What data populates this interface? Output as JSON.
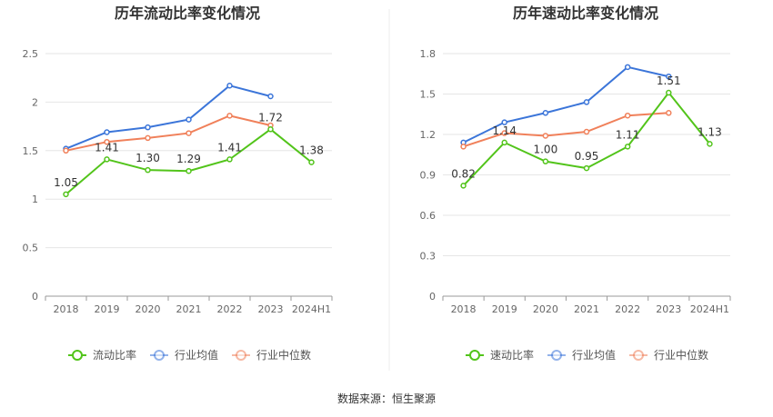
{
  "colors": {
    "primary": "#52c41a",
    "industry_avg": "#3b75d9",
    "industry_median": "#f0805a",
    "grid": "#e6e6e6",
    "axis": "#999999"
  },
  "chart_data": [
    {
      "type": "line",
      "title": "历年流动比率变化情况",
      "categories": [
        "2018",
        "2019",
        "2020",
        "2021",
        "2022",
        "2023",
        "2024H1"
      ],
      "ylim": [
        0,
        2.5
      ],
      "yticks": [
        "0",
        "0.5",
        "1",
        "1.5",
        "2",
        "2.5"
      ],
      "grid": true,
      "legend_position": "bottom",
      "series": [
        {
          "name": "流动比率",
          "values": [
            1.05,
            1.41,
            1.3,
            1.29,
            1.41,
            1.72,
            1.38
          ],
          "labels": [
            "1.05",
            "1.41",
            "1.30",
            "1.29",
            "1.41",
            "1.72",
            "1.38"
          ]
        },
        {
          "name": "行业均值",
          "values": [
            1.52,
            1.69,
            1.74,
            1.82,
            2.17,
            2.06,
            null
          ]
        },
        {
          "name": "行业中位数",
          "values": [
            1.5,
            1.59,
            1.63,
            1.68,
            1.86,
            1.76,
            null
          ]
        }
      ]
    },
    {
      "type": "line",
      "title": "历年速动比率变化情况",
      "categories": [
        "2018",
        "2019",
        "2020",
        "2021",
        "2022",
        "2023",
        "2024H1"
      ],
      "ylim": [
        0,
        1.8
      ],
      "yticks": [
        "0",
        "0.3",
        "0.6",
        "0.9",
        "1.2",
        "1.5",
        "1.8"
      ],
      "grid": true,
      "legend_position": "bottom",
      "series": [
        {
          "name": "速动比率",
          "values": [
            0.82,
            1.14,
            1.0,
            0.95,
            1.11,
            1.51,
            1.13
          ],
          "labels": [
            "0.82",
            "1.14",
            "1.00",
            "0.95",
            "1.11",
            "1.51",
            "1.13"
          ]
        },
        {
          "name": "行业均值",
          "values": [
            1.14,
            1.29,
            1.36,
            1.44,
            1.7,
            1.63,
            null
          ]
        },
        {
          "name": "行业中位数",
          "values": [
            1.11,
            1.21,
            1.19,
            1.22,
            1.34,
            1.36,
            null
          ]
        }
      ]
    }
  ],
  "footer": {
    "source": "数据来源：恒生聚源"
  }
}
